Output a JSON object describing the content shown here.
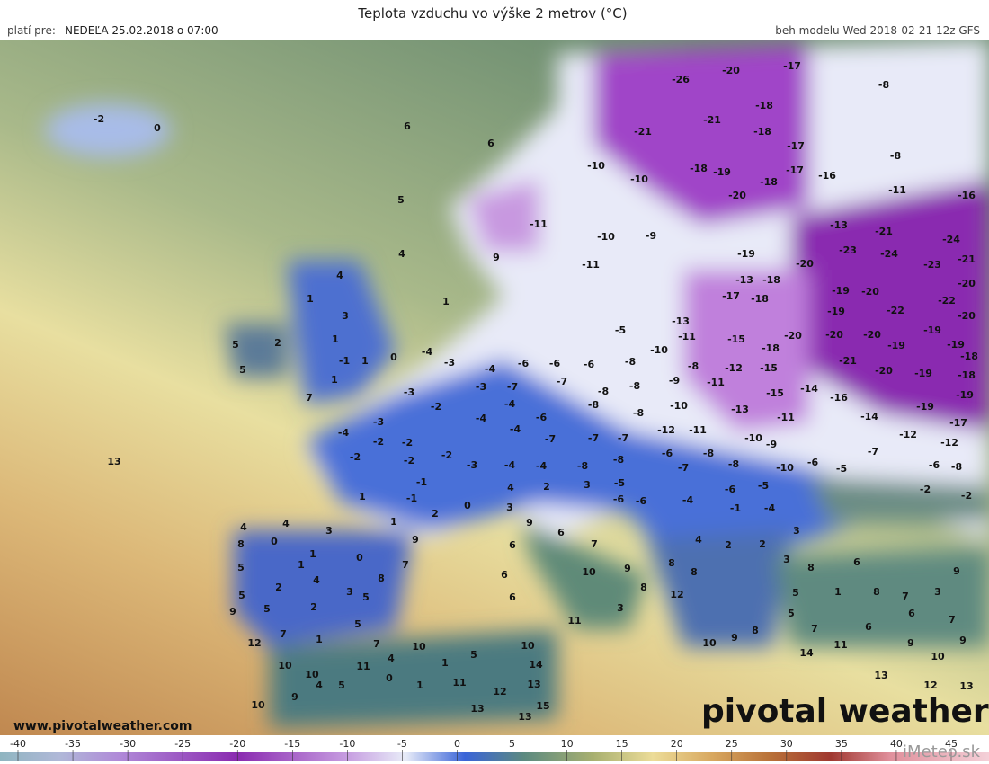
{
  "header": {
    "title": "Teplota vzduchu vo výške 2 metrov (°C)",
    "valid_label": "platí pre:",
    "valid_time": "NEDEĽA 25.02.2018 o 07:00",
    "model_run": "beh modelu Wed 2018-02-21 12z GFS"
  },
  "map": {
    "labels": [
      -2,
      0,
      6,
      6,
      5,
      4,
      1,
      13,
      4,
      1,
      3,
      1,
      -1,
      0,
      1,
      1,
      7,
      5,
      2,
      5,
      -26,
      -20,
      -17,
      -8,
      -18,
      -21,
      -21,
      -18,
      -17,
      -8,
      -10,
      -18,
      -19,
      -17,
      -16,
      -18,
      -20,
      -11,
      -16,
      -10,
      -11,
      -10,
      -9,
      -11,
      9,
      -13,
      -21,
      -24,
      -23,
      -24,
      -23,
      -21,
      -20,
      -19,
      -18,
      -13,
      -17,
      -18,
      -19,
      -20,
      -22,
      -20,
      -19,
      -22,
      -20,
      -20,
      -20,
      -20,
      -19,
      -19,
      -19,
      -18,
      -18,
      -21,
      -20,
      -19,
      -18,
      -19,
      -19,
      -15,
      -14,
      -16,
      -14,
      -17,
      -12,
      -12,
      -2,
      -2,
      -13,
      -15,
      -5,
      -10,
      -11,
      -8,
      -8,
      -12,
      -11,
      -9,
      -8,
      -6,
      -6,
      -6,
      -4,
      -3,
      -4,
      -3,
      -7,
      -7,
      -8,
      -8,
      -8,
      -10,
      -13,
      -15,
      -11,
      -10,
      -11,
      -12,
      -6,
      -4,
      -4,
      -4,
      -7,
      -7,
      -7,
      -6,
      -8,
      -8,
      -9,
      -10,
      -6,
      -5,
      -7,
      -6,
      -8,
      -3,
      -2,
      -3,
      -2,
      -2,
      -2,
      -2,
      -2,
      -3,
      -4,
      -4,
      -1,
      -1,
      1,
      1,
      2,
      0,
      -4,
      -8,
      -8,
      -5,
      -7,
      -6,
      -4,
      -6,
      -5,
      -1,
      -4,
      -6,
      4,
      2,
      3,
      3,
      9,
      6,
      7,
      10,
      9,
      8,
      3,
      11,
      6,
      6,
      6,
      4,
      2,
      2,
      3,
      3,
      8,
      8,
      12,
      10,
      9,
      8,
      4,
      4,
      3,
      9,
      8,
      0,
      1,
      0,
      7,
      5,
      1,
      8,
      2,
      4,
      3,
      5,
      5,
      5,
      2,
      9,
      7,
      1,
      5,
      12,
      7,
      10,
      10,
      11,
      4,
      10,
      1,
      5,
      10,
      14,
      9,
      4,
      5,
      0,
      1,
      11,
      12,
      13,
      13,
      13,
      10,
      15,
      8,
      6,
      8,
      9,
      1,
      5,
      7,
      3,
      6,
      7,
      5,
      6,
      7,
      11,
      9,
      9,
      10,
      12,
      13,
      13,
      14
    ]
  },
  "colorbar": {
    "ticks": [
      -40,
      -35,
      -30,
      -25,
      -20,
      -15,
      -10,
      -5,
      0,
      5,
      10,
      15,
      20,
      25,
      30,
      35,
      40,
      45
    ]
  },
  "footer": {
    "website": "www.pivotalweather.com",
    "logo": "pivotal weather",
    "source": "iMeteo.sk"
  }
}
